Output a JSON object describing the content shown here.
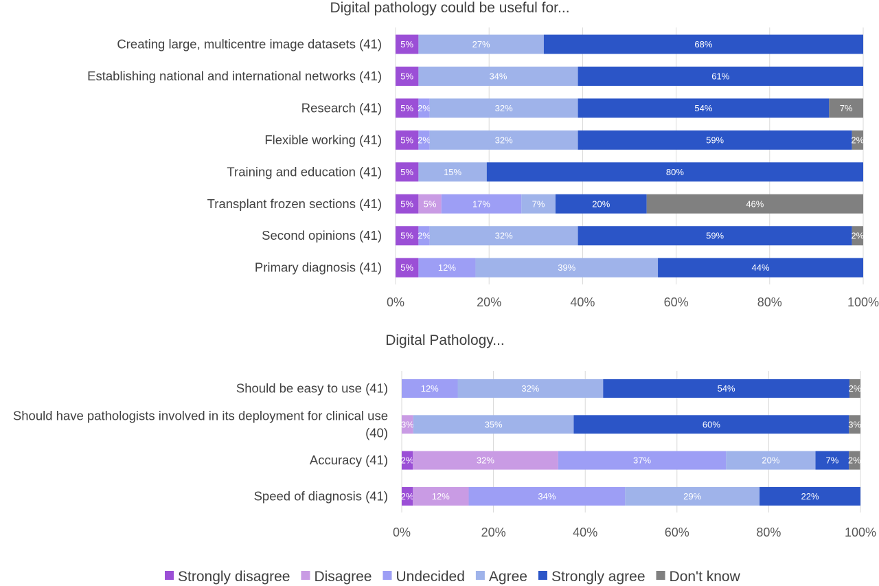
{
  "legend": [
    {
      "name": "Strongly disagree",
      "color": "#9b4fd6"
    },
    {
      "name": "Disagree",
      "color": "#c99be4"
    },
    {
      "name": "Undecided",
      "color": "#9d9ef5"
    },
    {
      "name": "Agree",
      "color": "#9fb3ea"
    },
    {
      "name": "Strongly agree",
      "color": "#2b55c7"
    },
    {
      "name": "Don't know",
      "color": "#808080"
    }
  ],
  "chart_data": [
    {
      "type": "bar",
      "orientation": "horizontal",
      "stacked": true,
      "title": "Digital pathology could be useful for...",
      "xlim": [
        0,
        100
      ],
      "x_ticks": [
        "0%",
        "20%",
        "40%",
        "60%",
        "80%",
        "100%"
      ],
      "grid": true,
      "legend_position": "bottom",
      "rows": [
        {
          "label": "Creating large, multicentre image datasets (41)",
          "segments": [
            {
              "k": 0,
              "v": 4.9,
              "t": "5%"
            },
            {
              "k": 3,
              "v": 26.8,
              "t": "27%"
            },
            {
              "k": 4,
              "v": 68.3,
              "t": "68%"
            }
          ]
        },
        {
          "label": "Establishing national and international networks (41)",
          "segments": [
            {
              "k": 0,
              "v": 4.9,
              "t": "5%"
            },
            {
              "k": 3,
              "v": 34.1,
              "t": "34%"
            },
            {
              "k": 4,
              "v": 61.0,
              "t": "61%"
            }
          ]
        },
        {
          "label": "Research (41)",
          "segments": [
            {
              "k": 0,
              "v": 4.9,
              "t": "5%"
            },
            {
              "k": 2,
              "v": 2.4,
              "t": "2%"
            },
            {
              "k": 3,
              "v": 31.7,
              "t": "32%"
            },
            {
              "k": 4,
              "v": 53.7,
              "t": "54%"
            },
            {
              "k": 5,
              "v": 7.3,
              "t": "7%"
            }
          ]
        },
        {
          "label": "Flexible working (41)",
          "segments": [
            {
              "k": 0,
              "v": 4.9,
              "t": "5%"
            },
            {
              "k": 2,
              "v": 2.4,
              "t": "2%"
            },
            {
              "k": 3,
              "v": 31.7,
              "t": "32%"
            },
            {
              "k": 4,
              "v": 58.6,
              "t": "59%"
            },
            {
              "k": 5,
              "v": 2.4,
              "t": "2%"
            }
          ]
        },
        {
          "label": "Training and education (41)",
          "segments": [
            {
              "k": 0,
              "v": 4.9,
              "t": "5%"
            },
            {
              "k": 3,
              "v": 14.6,
              "t": "15%"
            },
            {
              "k": 4,
              "v": 80.5,
              "t": "80%"
            }
          ]
        },
        {
          "label": "Transplant frozen sections (41)",
          "segments": [
            {
              "k": 0,
              "v": 4.9,
              "t": "5%"
            },
            {
              "k": 1,
              "v": 4.9,
              "t": "5%"
            },
            {
              "k": 2,
              "v": 17.1,
              "t": "17%"
            },
            {
              "k": 3,
              "v": 7.3,
              "t": "7%"
            },
            {
              "k": 4,
              "v": 19.5,
              "t": "20%"
            },
            {
              "k": 5,
              "v": 46.3,
              "t": "46%"
            }
          ]
        },
        {
          "label": "Second opinions (41)",
          "segments": [
            {
              "k": 0,
              "v": 4.9,
              "t": "5%"
            },
            {
              "k": 2,
              "v": 2.4,
              "t": "2%"
            },
            {
              "k": 3,
              "v": 31.7,
              "t": "32%"
            },
            {
              "k": 4,
              "v": 58.6,
              "t": "59%"
            },
            {
              "k": 5,
              "v": 2.4,
              "t": "2%"
            }
          ]
        },
        {
          "label": "Primary diagnosis (41)",
          "segments": [
            {
              "k": 0,
              "v": 4.9,
              "t": "5%"
            },
            {
              "k": 2,
              "v": 12.2,
              "t": "12%"
            },
            {
              "k": 3,
              "v": 39.0,
              "t": "39%"
            },
            {
              "k": 4,
              "v": 43.9,
              "t": "44%"
            }
          ]
        }
      ]
    },
    {
      "type": "bar",
      "orientation": "horizontal",
      "stacked": true,
      "title": "Digital Pathology...",
      "xlim": [
        0,
        100
      ],
      "x_ticks": [
        "0%",
        "20%",
        "40%",
        "60%",
        "80%",
        "100%"
      ],
      "grid": true,
      "legend_position": "bottom",
      "rows": [
        {
          "label": "Should be easy to use (41)",
          "segments": [
            {
              "k": 2,
              "v": 12.2,
              "t": "12%"
            },
            {
              "k": 3,
              "v": 31.7,
              "t": "32%"
            },
            {
              "k": 4,
              "v": 53.7,
              "t": "54%"
            },
            {
              "k": 5,
              "v": 2.4,
              "t": "2%"
            }
          ]
        },
        {
          "label": "Should have pathologists involved in its deployment for clinical use (40)",
          "label_lines": [
            "Should have pathologists involved in its deployment for clinical use",
            "(40)"
          ],
          "segments": [
            {
              "k": 1,
              "v": 2.5,
              "t": "3%"
            },
            {
              "k": 3,
              "v": 35.0,
              "t": "35%"
            },
            {
              "k": 4,
              "v": 60.0,
              "t": "60%"
            },
            {
              "k": 5,
              "v": 2.5,
              "t": "3%"
            }
          ]
        },
        {
          "label": "Accuracy (41)",
          "segments": [
            {
              "k": 0,
              "v": 2.4,
              "t": "2%"
            },
            {
              "k": 1,
              "v": 31.7,
              "t": "32%"
            },
            {
              "k": 2,
              "v": 36.6,
              "t": "37%"
            },
            {
              "k": 3,
              "v": 19.5,
              "t": "20%"
            },
            {
              "k": 4,
              "v": 7.3,
              "t": "7%"
            },
            {
              "k": 5,
              "v": 2.4,
              "t": "2%"
            }
          ]
        },
        {
          "label": "Speed of diagnosis (41)",
          "segments": [
            {
              "k": 0,
              "v": 2.4,
              "t": "2%"
            },
            {
              "k": 1,
              "v": 12.2,
              "t": "12%"
            },
            {
              "k": 2,
              "v": 34.1,
              "t": "34%"
            },
            {
              "k": 3,
              "v": 29.3,
              "t": "29%"
            },
            {
              "k": 4,
              "v": 22.0,
              "t": "22%"
            }
          ]
        }
      ]
    }
  ]
}
